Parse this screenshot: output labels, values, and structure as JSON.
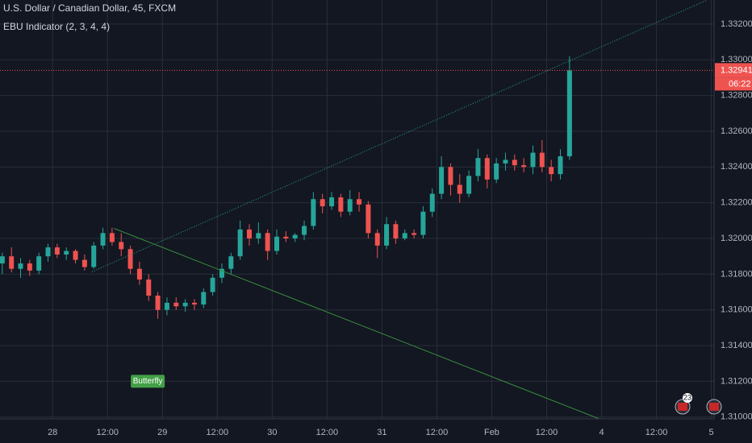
{
  "chart_data": {
    "type": "candlestick",
    "title": "U.S. Dollar / Canadian Dollar, 45, FXCM",
    "subtitle": "EBU Indicator (2, 3, 4, 4)",
    "annotation": "Butterfly",
    "countdown": "06:22",
    "event_badge": "23",
    "up_color": "#26a69a",
    "down_color": "#ef5350",
    "grid": true,
    "x": [
      -11,
      -9,
      -7,
      -5,
      -3,
      -1,
      1,
      3,
      5,
      7,
      9,
      11,
      13,
      15,
      17,
      19,
      21,
      23,
      25,
      27,
      29,
      31,
      33,
      35,
      37,
      39,
      41,
      43,
      45,
      47,
      49,
      51,
      53,
      55,
      57,
      59,
      61,
      63,
      65,
      67,
      69,
      71,
      73,
      75,
      77,
      79,
      81,
      83,
      85,
      87,
      89,
      91,
      93,
      95,
      97,
      99,
      101,
      103,
      105,
      107,
      109,
      111,
      113
    ],
    "open": [
      1.3186,
      1.319,
      1.3183,
      1.3186,
      1.3182,
      1.319,
      1.3195,
      1.3191,
      1.3193,
      1.3188,
      1.3184,
      1.3196,
      1.3203,
      1.3198,
      1.3194,
      1.3183,
      1.3177,
      1.3168,
      1.316,
      1.3164,
      1.3162,
      1.3164,
      1.3163,
      1.317,
      1.3178,
      1.3183,
      1.319,
      1.3205,
      1.32,
      1.3203,
      1.3193,
      1.3201,
      1.32,
      1.3202,
      1.3207,
      1.3222,
      1.3218,
      1.3223,
      1.3215,
      1.3222,
      1.3219,
      1.3203,
      1.3196,
      1.3208,
      1.32,
      1.3203,
      1.3202,
      1.3215,
      1.3225,
      1.324,
      1.323,
      1.3225,
      1.3235,
      1.3245,
      1.3233,
      1.3242,
      1.3244,
      1.3241,
      1.324,
      1.3248,
      1.324,
      1.3236,
      1.3246
    ],
    "high": [
      1.3192,
      1.3195,
      1.3189,
      1.3188,
      1.3192,
      1.3197,
      1.3197,
      1.3195,
      1.3194,
      1.3191,
      1.3198,
      1.3206,
      1.3206,
      1.3203,
      1.3196,
      1.3187,
      1.318,
      1.317,
      1.3167,
      1.3167,
      1.3166,
      1.3166,
      1.3172,
      1.318,
      1.3186,
      1.3192,
      1.321,
      1.3208,
      1.3209,
      1.3205,
      1.3205,
      1.3204,
      1.3203,
      1.321,
      1.3226,
      1.3225,
      1.3226,
      1.3225,
      1.3227,
      1.3226,
      1.3221,
      1.3205,
      1.3212,
      1.321,
      1.3205,
      1.3205,
      1.3218,
      1.3228,
      1.3246,
      1.3242,
      1.3236,
      1.3238,
      1.325,
      1.3247,
      1.3245,
      1.3248,
      1.3247,
      1.3245,
      1.3252,
      1.3255,
      1.3244,
      1.325,
      1.3302
    ],
    "low": [
      1.318,
      1.3181,
      1.3178,
      1.3179,
      1.318,
      1.3187,
      1.3189,
      1.3188,
      1.3186,
      1.3182,
      1.3183,
      1.3194,
      1.3196,
      1.319,
      1.318,
      1.3174,
      1.3165,
      1.3155,
      1.3157,
      1.316,
      1.3159,
      1.316,
      1.3161,
      1.3168,
      1.3175,
      1.318,
      1.3188,
      1.3196,
      1.3197,
      1.3188,
      1.3191,
      1.3198,
      1.3198,
      1.3199,
      1.3205,
      1.3214,
      1.3216,
      1.3212,
      1.3213,
      1.3215,
      1.32,
      1.3189,
      1.3194,
      1.3197,
      1.3199,
      1.32,
      1.32,
      1.3212,
      1.3222,
      1.3224,
      1.322,
      1.3223,
      1.3232,
      1.3228,
      1.3231,
      1.3238,
      1.3238,
      1.3237,
      1.3236,
      1.3237,
      1.3232,
      1.3233,
      1.3244
    ],
    "close": [
      1.319,
      1.3183,
      1.3186,
      1.3182,
      1.319,
      1.3195,
      1.3191,
      1.3193,
      1.3188,
      1.3184,
      1.3196,
      1.3203,
      1.3198,
      1.3194,
      1.3183,
      1.3177,
      1.3168,
      1.316,
      1.3164,
      1.3162,
      1.3164,
      1.3163,
      1.317,
      1.3178,
      1.3183,
      1.319,
      1.3205,
      1.32,
      1.3203,
      1.3193,
      1.3201,
      1.32,
      1.3202,
      1.3207,
      1.3222,
      1.3218,
      1.3223,
      1.3215,
      1.3222,
      1.3219,
      1.3203,
      1.3196,
      1.3208,
      1.32,
      1.3203,
      1.3202,
      1.3215,
      1.3225,
      1.324,
      1.323,
      1.3225,
      1.3235,
      1.3245,
      1.3233,
      1.3242,
      1.3244,
      1.3241,
      1.324,
      1.3248,
      1.324,
      1.3236,
      1.3246,
      1.32941
    ],
    "trend_lines": [
      {
        "style": "dotted",
        "color": "#26a69a",
        "x": [
          8.6,
          143.1
        ],
        "y": [
          1.31813,
          1.33335
        ]
      },
      {
        "style": "solid",
        "color": "#388e3c",
        "x": [
          13.45,
          119.5
        ],
        "y": [
          1.32056,
          1.3099
        ]
      }
    ],
    "annotation_at": {
      "x": 20.8,
      "y": 1.312
    },
    "xlim": [
      -11.5,
      144.6
    ],
    "ylim": [
      1.3099,
      1.33335
    ],
    "xticks": [
      {
        "value": 0,
        "label": "28"
      },
      {
        "value": 12,
        "label": "12:00"
      },
      {
        "value": 24,
        "label": "29"
      },
      {
        "value": 36,
        "label": "12:00"
      },
      {
        "value": 48,
        "label": "30"
      },
      {
        "value": 60,
        "label": "12:00"
      },
      {
        "value": 72,
        "label": "31"
      },
      {
        "value": 84,
        "label": "12:00"
      },
      {
        "value": 96,
        "label": "Feb"
      },
      {
        "value": 108,
        "label": "12:00"
      },
      {
        "value": 120,
        "label": "4"
      },
      {
        "value": 132,
        "label": "12:00"
      },
      {
        "value": 144,
        "label": "5"
      }
    ],
    "yticks": [
      {
        "value": 1.31,
        "label": "1.31000"
      },
      {
        "value": 1.312,
        "label": "1.31200"
      },
      {
        "value": 1.314,
        "label": "1.31400"
      },
      {
        "value": 1.316,
        "label": "1.31600"
      },
      {
        "value": 1.318,
        "label": "1.31800"
      },
      {
        "value": 1.32,
        "label": "1.32000"
      },
      {
        "value": 1.322,
        "label": "1.32200"
      },
      {
        "value": 1.324,
        "label": "1.32400"
      },
      {
        "value": 1.326,
        "label": "1.32600"
      },
      {
        "value": 1.328,
        "label": "1.32800"
      },
      {
        "value": 1.33,
        "label": "1.33000"
      },
      {
        "value": 1.332,
        "label": "1.33200"
      }
    ]
  }
}
